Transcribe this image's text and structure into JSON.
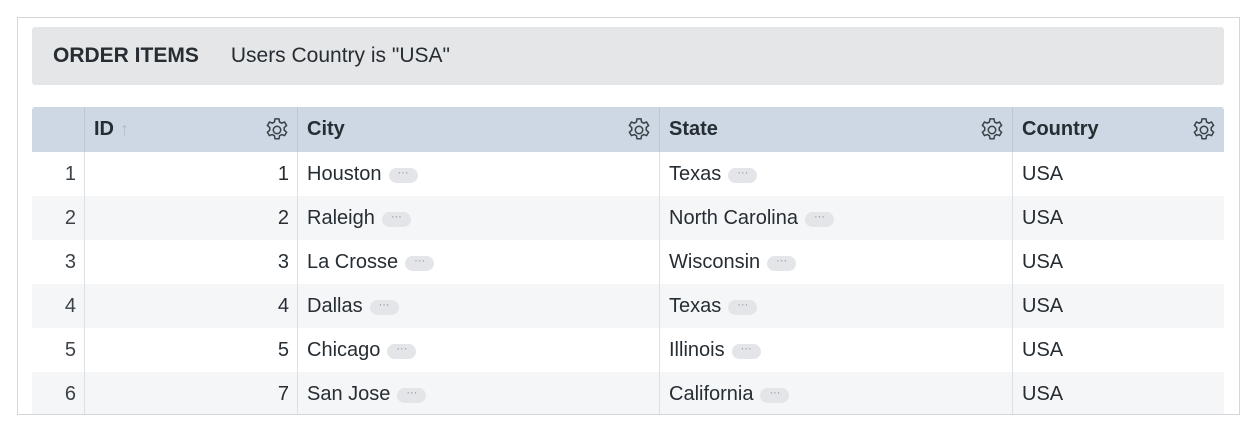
{
  "header": {
    "title": "ORDER ITEMS",
    "filter": "Users Country is \"USA\""
  },
  "columns": [
    {
      "label": "ID",
      "sort": "ascending",
      "sort_icon": "arrow-up-icon"
    },
    {
      "label": "City"
    },
    {
      "label": "State"
    },
    {
      "label": "Country"
    }
  ],
  "rows": [
    {
      "n": "1",
      "id": "1",
      "city": "Houston",
      "state": "Texas",
      "country": "USA"
    },
    {
      "n": "2",
      "id": "2",
      "city": "Raleigh",
      "state": "North Carolina",
      "country": "USA"
    },
    {
      "n": "3",
      "id": "3",
      "city": "La Crosse",
      "state": "Wisconsin",
      "country": "USA"
    },
    {
      "n": "4",
      "id": "4",
      "city": "Dallas",
      "state": "Texas",
      "country": "USA"
    },
    {
      "n": "5",
      "id": "5",
      "city": "Chicago",
      "state": "Illinois",
      "country": "USA"
    },
    {
      "n": "6",
      "id": "7",
      "city": "San Jose",
      "state": "California",
      "country": "USA"
    }
  ],
  "more_glyph": "···",
  "colors": {
    "header_bg": "#cdd8e4",
    "titlebar_bg": "#e5e6e8",
    "alt_row": "#f5f6f8"
  }
}
